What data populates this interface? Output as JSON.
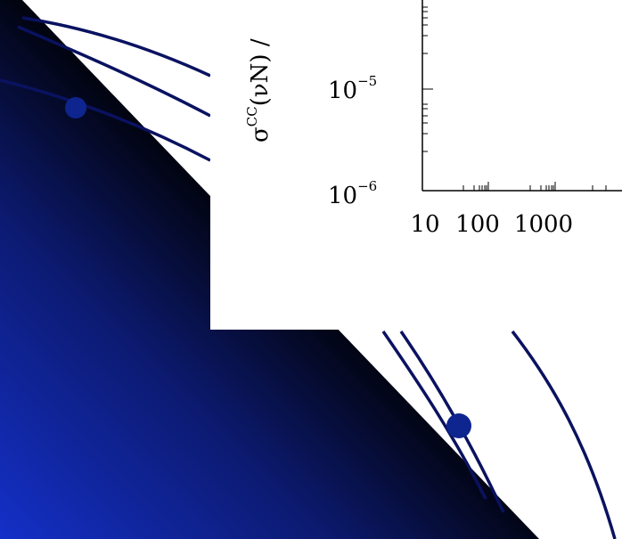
{
  "plot": {
    "y_label": {
      "symbol": "σ",
      "superscript": "CC",
      "rest": "(νN) /"
    },
    "yticks": [
      {
        "base": "10",
        "exponent": "−5"
      },
      {
        "base": "10",
        "exponent": "−6"
      }
    ],
    "xticks": [
      "10",
      "100",
      "1000"
    ]
  }
}
